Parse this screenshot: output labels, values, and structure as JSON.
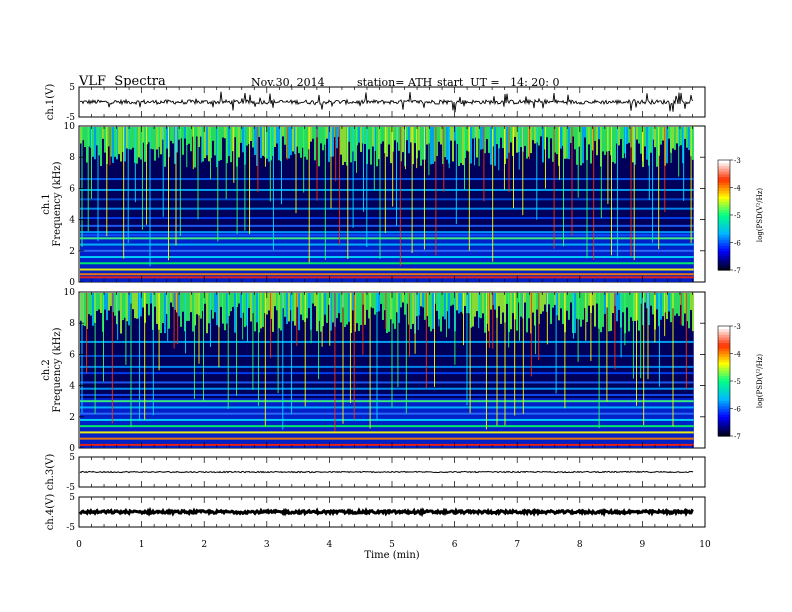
{
  "header": {
    "title": "VLF  Spectra",
    "date": "Nov.30, 2014",
    "station": "station= ATH",
    "start": "start  UT =   14: 20: 0"
  },
  "chart_data": [
    {
      "type": "line",
      "name": "ch.1 waveform",
      "ylabel": "ch.1(V)",
      "ylim": [
        -5,
        5
      ],
      "yticks": [
        -5,
        5
      ],
      "xlim": [
        0,
        10
      ],
      "data_end_min": 9.82
    },
    {
      "type": "heatmap",
      "name": "ch.1 spectrogram",
      "ylabel_line1": "ch.1",
      "ylabel_line2": "Frequency  (kHz)",
      "ylim": [
        0,
        10
      ],
      "yticks": [
        0,
        2,
        4,
        6,
        8,
        10
      ],
      "xlim": [
        0,
        10
      ],
      "colorbar": {
        "label": "log(PSD(V²/Hz)",
        "range": [
          -7,
          -3
        ],
        "ticks": [
          -7,
          -6,
          -5,
          -4,
          -3
        ],
        "colors": [
          "#000020",
          "#0000ff",
          "#00b8ff",
          "#00ff88",
          "#ffff00",
          "#ff3000",
          "#ffffff"
        ]
      },
      "bands_khz": [
        0.3,
        0.5,
        0.8,
        1.2,
        1.6,
        2.0,
        2.4,
        2.8,
        3.0,
        3.2,
        3.6,
        4.1,
        4.7,
        5.3,
        5.9,
        6.6
      ]
    },
    {
      "type": "heatmap",
      "name": "ch.2 spectrogram",
      "ylabel_line1": "ch.2",
      "ylabel_line2": "Frequency  (kHz)",
      "ylim": [
        0,
        10
      ],
      "yticks": [
        0,
        2,
        4,
        6,
        8,
        10
      ],
      "xlim": [
        0,
        10
      ],
      "colorbar": {
        "label": "log(PSD(V²/Hz)",
        "range": [
          -7,
          -3
        ],
        "ticks": [
          -7,
          -6,
          -5,
          -4,
          -3
        ],
        "colors": [
          "#000020",
          "#0000ff",
          "#00b8ff",
          "#00ff88",
          "#ffff00",
          "#ff3000",
          "#ffffff"
        ]
      },
      "bands_khz": [
        0.2,
        0.6,
        1.0,
        1.4,
        1.8,
        2.2,
        2.6,
        3.0,
        3.4,
        3.8,
        4.2,
        4.8,
        5.2,
        5.9,
        6.8
      ]
    },
    {
      "type": "line",
      "name": "ch.3 waveform",
      "ylabel": "ch.3(V)",
      "ylim": [
        -5,
        5
      ],
      "yticks": [
        -5,
        5
      ],
      "xlim": [
        0,
        10
      ],
      "data_end_min": 9.82
    },
    {
      "type": "line",
      "name": "ch.4 waveform",
      "ylabel": "ch.4(V)",
      "ylim": [
        -5,
        5
      ],
      "yticks": [
        -5,
        5
      ],
      "xlim": [
        0,
        10
      ],
      "data_end_min": 9.82
    }
  ],
  "x_axis": {
    "label": "Time  (min)",
    "ticks": [
      "0",
      "1",
      "2",
      "3",
      "4",
      "5",
      "6",
      "7",
      "8",
      "9",
      "10"
    ]
  }
}
